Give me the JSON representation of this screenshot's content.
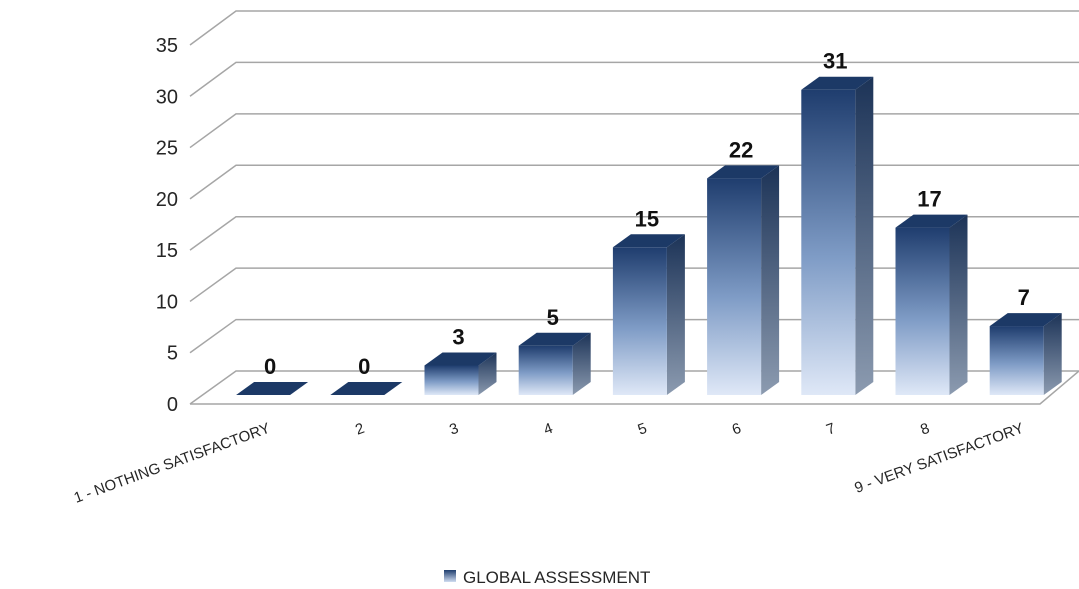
{
  "chart_data": {
    "type": "bar",
    "title": "",
    "xlabel": "",
    "ylabel": "",
    "categories": [
      "1 - NOTHING SATISFACTORY",
      "2",
      "3",
      "4",
      "5",
      "6",
      "7",
      "8",
      "9 - VERY SATISFACTORY"
    ],
    "series": [
      {
        "name": "GLOBAL ASSESSMENT",
        "values": [
          0,
          0,
          3,
          5,
          15,
          22,
          31,
          17,
          7
        ]
      }
    ],
    "ylim": [
      0,
      35
    ],
    "yticks": [
      "0",
      "5",
      "10",
      "15",
      "20",
      "25",
      "30",
      "35"
    ],
    "grid": true,
    "legend": "bottom",
    "style": "3d-column",
    "colors": {
      "bar_top": "#1f3d6e",
      "bar_bottom": "#dfe8f7",
      "bar_side": "#213a5f",
      "grid": "#a6a6a6"
    }
  }
}
